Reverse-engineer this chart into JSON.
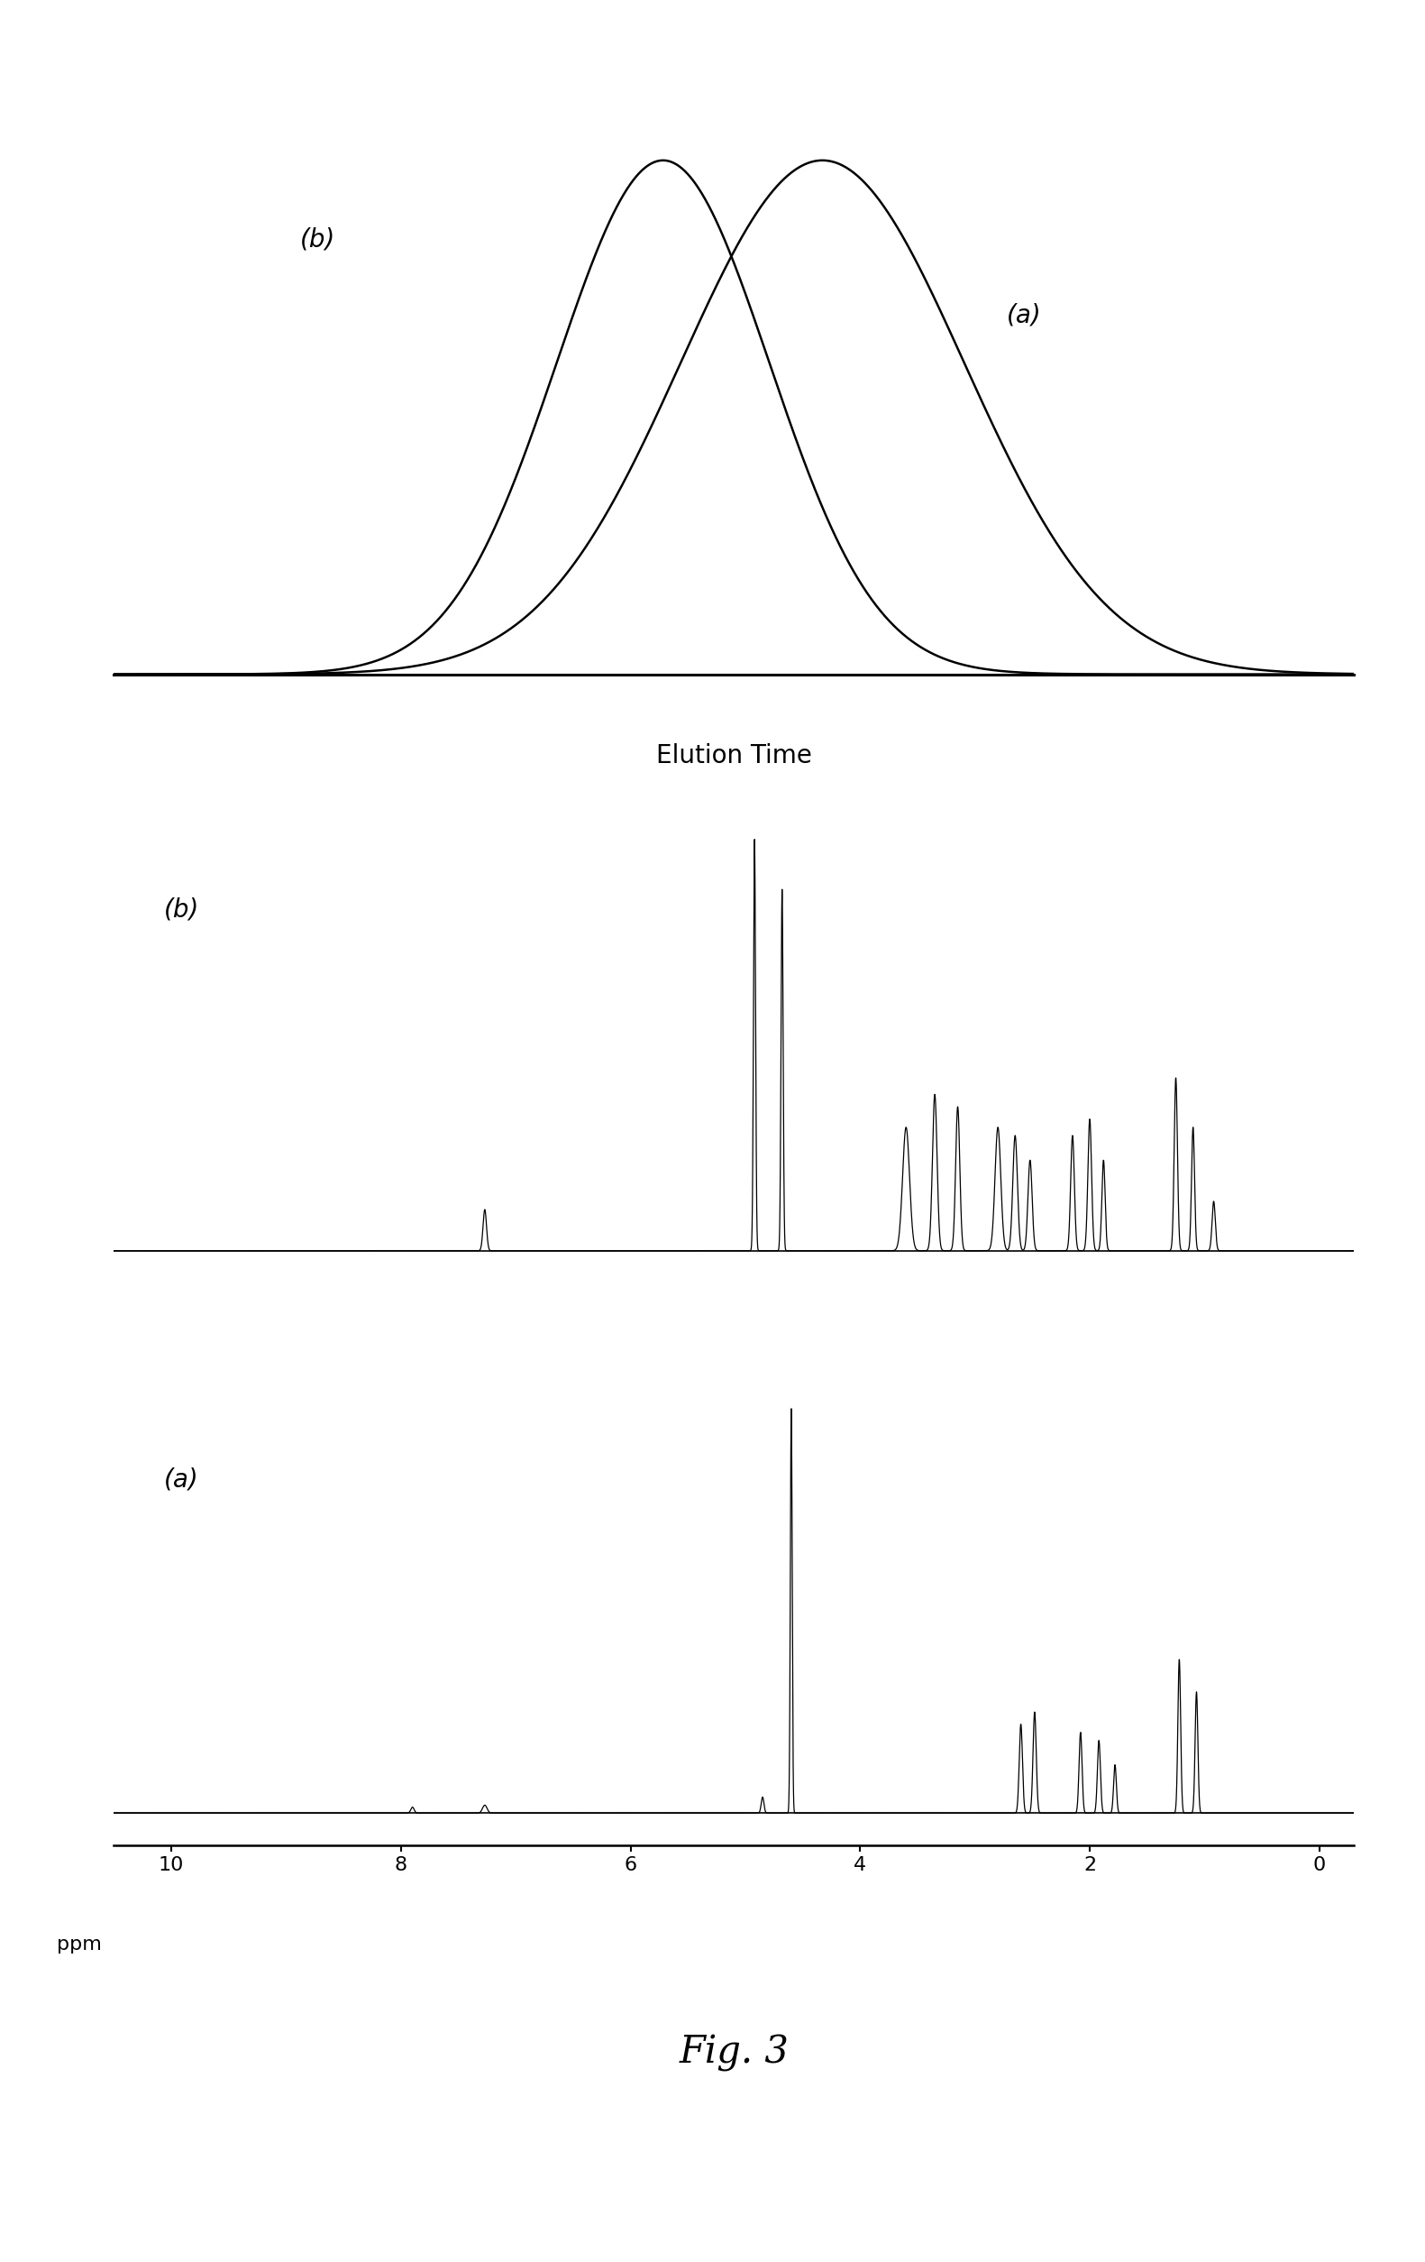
{
  "fig_width": 15.81,
  "fig_height": 25.08,
  "background_color": "#ffffff",
  "title": "Fig. 3",
  "title_fontsize": 30,
  "elution_label": "Elution Time",
  "elution_label_fontsize": 20,
  "ppm_label": "ppm",
  "ppm_label_fontsize": 16,
  "gpc_label_a": "(a)",
  "gpc_label_b": "(b)",
  "nmr_label_a": "(a)",
  "nmr_label_b": "(b)",
  "label_fontsize": 20
}
